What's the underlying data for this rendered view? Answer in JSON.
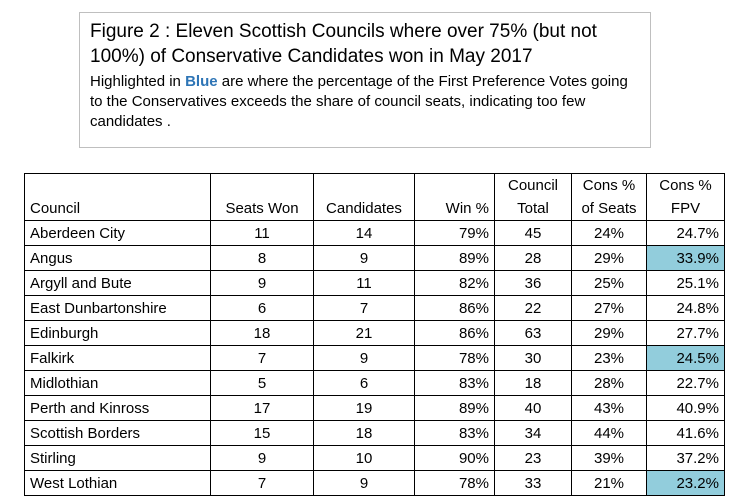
{
  "caption": {
    "title_line1": "Figure 2 : Eleven Scottish Councils where over 75% (but not",
    "title_line2": "100%) of Conservative  Candidates won in May 2017",
    "sub_before": "Highlighted in ",
    "sub_highlight": "Blue",
    "sub_after": " are where the percentage of the First Preference  Votes going to the Conservatives exceeds the share of council seats, indicating too few candidates ."
  },
  "highlight_color": "#92cddc",
  "highlight_text_color": "#2e75b6",
  "table": {
    "headers": {
      "council": "Council",
      "seats_won": "Seats Won",
      "candidates": "Candidates",
      "win_pct": "Win %",
      "council_total_1": "Council",
      "council_total_2": "Total",
      "cons_seats_1": "Cons %",
      "cons_seats_2": "of Seats",
      "cons_fpv_1": "Cons %",
      "cons_fpv_2": "FPV"
    },
    "rows": [
      {
        "council": "Aberdeen City",
        "seats_won": "11",
        "candidates": "14",
        "win_pct": "79%",
        "total": "45",
        "cons_seats": "24%",
        "cons_fpv": "24.7%",
        "fpv_highlight": false
      },
      {
        "council": "Angus",
        "seats_won": "8",
        "candidates": "9",
        "win_pct": "89%",
        "total": "28",
        "cons_seats": "29%",
        "cons_fpv": "33.9%",
        "fpv_highlight": true
      },
      {
        "council": "Argyll and Bute",
        "seats_won": "9",
        "candidates": "11",
        "win_pct": "82%",
        "total": "36",
        "cons_seats": "25%",
        "cons_fpv": "25.1%",
        "fpv_highlight": false
      },
      {
        "council": "East Dunbartonshire",
        "seats_won": "6",
        "candidates": "7",
        "win_pct": "86%",
        "total": "22",
        "cons_seats": "27%",
        "cons_fpv": "24.8%",
        "fpv_highlight": false
      },
      {
        "council": "Edinburgh",
        "seats_won": "18",
        "candidates": "21",
        "win_pct": "86%",
        "total": "63",
        "cons_seats": "29%",
        "cons_fpv": "27.7%",
        "fpv_highlight": false
      },
      {
        "council": "Falkirk",
        "seats_won": "7",
        "candidates": "9",
        "win_pct": "78%",
        "total": "30",
        "cons_seats": "23%",
        "cons_fpv": "24.5%",
        "fpv_highlight": true
      },
      {
        "council": "Midlothian",
        "seats_won": "5",
        "candidates": "6",
        "win_pct": "83%",
        "total": "18",
        "cons_seats": "28%",
        "cons_fpv": "22.7%",
        "fpv_highlight": false
      },
      {
        "council": "Perth and Kinross",
        "seats_won": "17",
        "candidates": "19",
        "win_pct": "89%",
        "total": "40",
        "cons_seats": "43%",
        "cons_fpv": "40.9%",
        "fpv_highlight": false
      },
      {
        "council": "Scottish Borders",
        "seats_won": "15",
        "candidates": "18",
        "win_pct": "83%",
        "total": "34",
        "cons_seats": "44%",
        "cons_fpv": "41.6%",
        "fpv_highlight": false
      },
      {
        "council": "Stirling",
        "seats_won": "9",
        "candidates": "10",
        "win_pct": "90%",
        "total": "23",
        "cons_seats": "39%",
        "cons_fpv": "37.2%",
        "fpv_highlight": false
      },
      {
        "council": "West Lothian",
        "seats_won": "7",
        "candidates": "9",
        "win_pct": "78%",
        "total": "33",
        "cons_seats": "21%",
        "cons_fpv": "23.2%",
        "fpv_highlight": true
      }
    ]
  }
}
